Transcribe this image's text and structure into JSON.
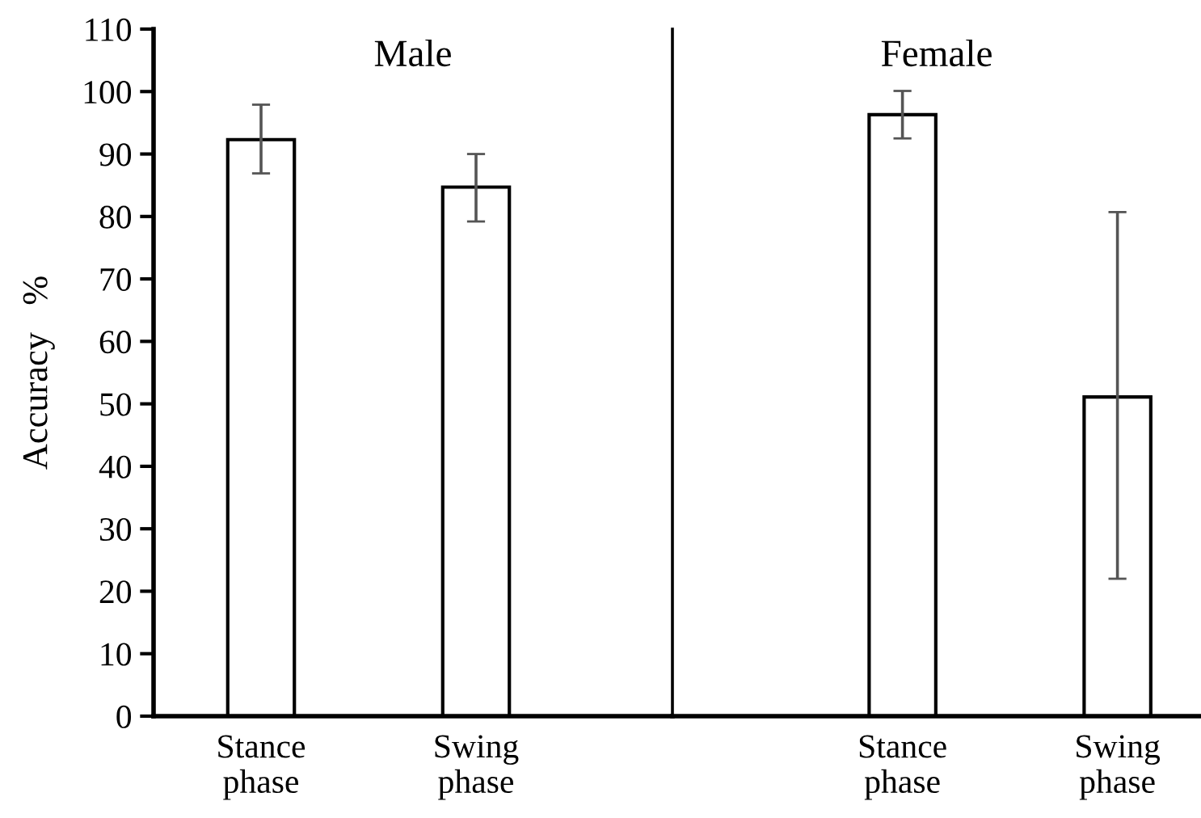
{
  "chart_data": [
    {
      "type": "bar",
      "title": "Male",
      "ylabel": "Accuracy   %",
      "categories": [
        "Stance\nphase",
        "Swing\nphase"
      ],
      "series": [
        {
          "color": "#ffffff",
          "values": [
            92.3,
            84.7
          ],
          "errors": [
            [
              86.9,
              97.9
            ],
            [
              79.2,
              90.0
            ]
          ]
        }
      ],
      "ylim": [
        0,
        110
      ],
      "yticks": [
        0,
        10,
        20,
        30,
        40,
        50,
        60,
        70,
        80,
        90,
        100,
        110
      ],
      "grid": false,
      "legend": false
    },
    {
      "type": "bar",
      "title": "Female",
      "categories": [
        "Stance\nphase",
        "Swing\nphase"
      ],
      "series": [
        {
          "color": "#ffffff",
          "values": [
            96.3,
            51.1
          ],
          "errors": [
            [
              92.5,
              100.1
            ],
            [
              22.0,
              80.7
            ]
          ]
        }
      ],
      "ylim": [
        0,
        110
      ],
      "tick_labels": "x",
      "grid": false,
      "legend": false
    }
  ]
}
